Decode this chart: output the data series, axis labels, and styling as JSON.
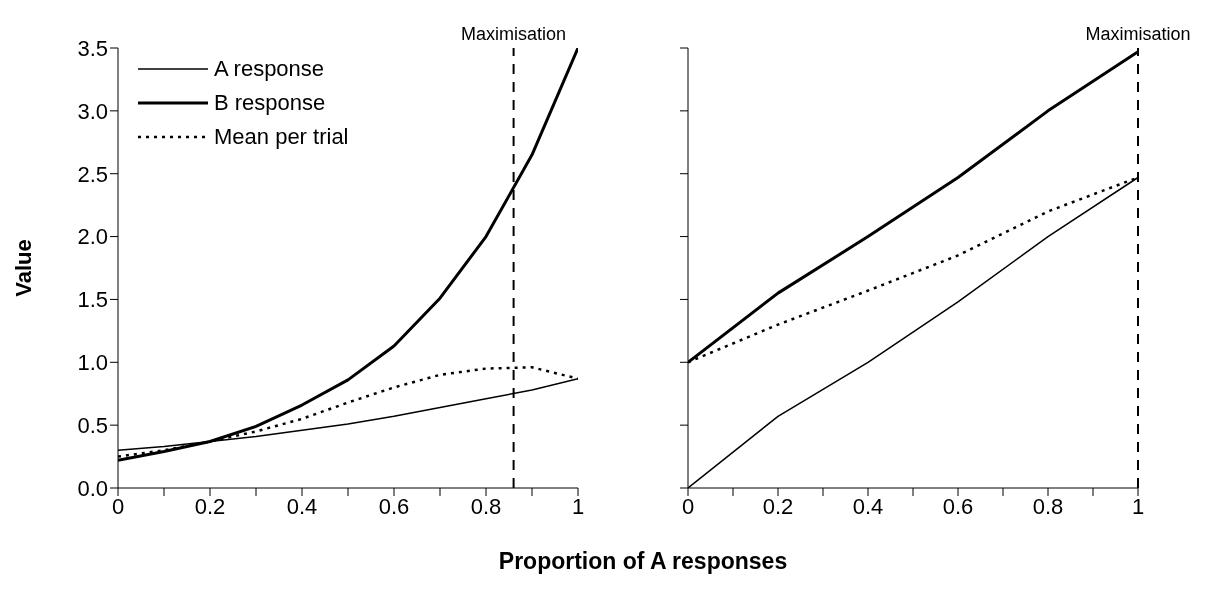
{
  "chart_data": [
    {
      "type": "line",
      "ylabel": "Value",
      "xlabel": "Proportion of A responses",
      "x": [
        0,
        0.1,
        0.2,
        0.3,
        0.4,
        0.5,
        0.6,
        0.7,
        0.8,
        0.9,
        1
      ],
      "series": [
        {
          "name": "A response",
          "color": "#000000",
          "line_style": "solid",
          "values": [
            0.3,
            0.33,
            0.37,
            0.41,
            0.46,
            0.51,
            0.57,
            0.64,
            0.71,
            0.78,
            0.87
          ]
        },
        {
          "name": "B response",
          "color": "#000000",
          "line_style": "solid",
          "values": [
            0.22,
            0.29,
            0.37,
            0.49,
            0.66,
            0.86,
            1.13,
            1.51,
            2.0,
            2.65,
            3.5
          ]
        },
        {
          "name": "Mean per trial",
          "color": "#000000",
          "line_style": "dotted",
          "values": [
            0.25,
            0.3,
            0.37,
            0.45,
            0.55,
            0.68,
            0.8,
            0.9,
            0.95,
            0.96,
            0.87
          ]
        }
      ],
      "xlim": [
        0,
        1
      ],
      "xticks": [
        0,
        {
          "value": 0.1,
          "label": null
        },
        0.2,
        {
          "value": 0.3,
          "label": null
        },
        0.4,
        {
          "value": 0.5,
          "label": null
        },
        0.6,
        {
          "value": 0.7,
          "label": null
        },
        0.8,
        {
          "value": 0.9,
          "label": null
        },
        1
      ],
      "ylim": [
        0,
        3.5
      ],
      "yticks": [
        {
          "value": 0,
          "label": "0.0"
        },
        0.5,
        {
          "value": 1,
          "label": "1.0"
        },
        1.5,
        {
          "value": 2,
          "label": "2.0"
        },
        2.5,
        {
          "value": 3,
          "label": "3.0"
        },
        3.5
      ],
      "ref_lines": [
        {
          "axis": "x",
          "value": 0.86,
          "label": "Maximisation",
          "line_style": "dashed",
          "color": "#000000"
        }
      ],
      "legend": "top left",
      "grid": false
    },
    {
      "type": "line",
      "x": [
        0,
        0.2,
        0.4,
        0.6,
        0.8,
        1
      ],
      "series": [
        {
          "color": "#000000",
          "line_style": "solid",
          "values": [
            0,
            0.57,
            1.0,
            1.48,
            2.0,
            2.47
          ]
        },
        {
          "color": "#000000",
          "line_style": "solid",
          "values": [
            1.0,
            1.55,
            2.0,
            2.47,
            3.0,
            3.47
          ]
        },
        {
          "color": "#000000",
          "line_style": "dotted",
          "values": [
            1.0,
            1.3,
            1.57,
            1.85,
            2.2,
            2.47
          ]
        }
      ],
      "xlim": [
        0,
        1
      ],
      "xticks": [
        0,
        {
          "value": 0.1,
          "label": null
        },
        0.2,
        {
          "value": 0.3,
          "label": null
        },
        0.4,
        {
          "value": 0.5,
          "label": null
        },
        0.6,
        {
          "value": 0.7,
          "label": null
        },
        0.8,
        {
          "value": 0.9,
          "label": null
        },
        1
      ],
      "ylim": [
        0,
        3.5
      ],
      "yticks": [
        0,
        0.5,
        1,
        1.5,
        2,
        2.5,
        3,
        3.5
      ],
      "ref_lines": [
        {
          "axis": "x",
          "value": 1,
          "label": "Maximisation",
          "line_style": "dashed",
          "color": "#000000"
        }
      ],
      "tick_labels": "x",
      "legend": false,
      "grid": false
    }
  ]
}
